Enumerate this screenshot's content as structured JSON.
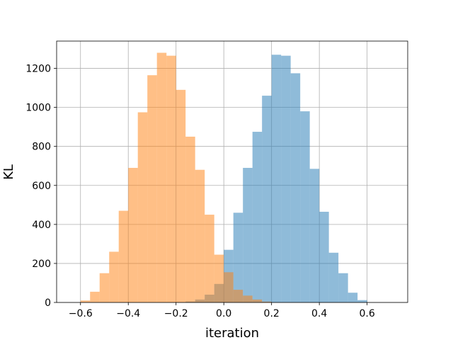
{
  "chart_data": {
    "type": "bar",
    "title": "",
    "xlabel": "iteration",
    "ylabel": "KL",
    "xlim": [
      -0.7,
      0.77
    ],
    "ylim": [
      0,
      1340
    ],
    "grid": true,
    "xticks": [
      -0.6,
      -0.4,
      -0.2,
      0.0,
      0.2,
      0.4,
      0.6
    ],
    "xtick_labels": [
      "−0.6",
      "−0.4",
      "−0.2",
      "0.0",
      "0.2",
      "0.4",
      "0.6"
    ],
    "yticks": [
      0,
      200,
      400,
      600,
      800,
      1000,
      1200
    ],
    "ytick_labels": [
      "0",
      "200",
      "400",
      "600",
      "800",
      "1000",
      "1200"
    ],
    "series": [
      {
        "color": "#1f77b4",
        "alpha": 0.5,
        "bins": [
          {
            "x0": -0.2,
            "x1": -0.16,
            "count": 2
          },
          {
            "x0": -0.16,
            "x1": -0.12,
            "count": 5
          },
          {
            "x0": -0.12,
            "x1": -0.08,
            "count": 15
          },
          {
            "x0": -0.08,
            "x1": -0.04,
            "count": 40
          },
          {
            "x0": -0.04,
            "x1": 0.0,
            "count": 95
          },
          {
            "x0": 0.0,
            "x1": 0.04,
            "count": 270
          },
          {
            "x0": 0.04,
            "x1": 0.08,
            "count": 460
          },
          {
            "x0": 0.08,
            "x1": 0.12,
            "count": 690
          },
          {
            "x0": 0.12,
            "x1": 0.16,
            "count": 875
          },
          {
            "x0": 0.16,
            "x1": 0.2,
            "count": 1060
          },
          {
            "x0": 0.2,
            "x1": 0.24,
            "count": 1270
          },
          {
            "x0": 0.24,
            "x1": 0.28,
            "count": 1265
          },
          {
            "x0": 0.28,
            "x1": 0.32,
            "count": 1175
          },
          {
            "x0": 0.32,
            "x1": 0.36,
            "count": 980
          },
          {
            "x0": 0.36,
            "x1": 0.4,
            "count": 685
          },
          {
            "x0": 0.4,
            "x1": 0.44,
            "count": 465
          },
          {
            "x0": 0.44,
            "x1": 0.48,
            "count": 255
          },
          {
            "x0": 0.48,
            "x1": 0.52,
            "count": 150
          },
          {
            "x0": 0.52,
            "x1": 0.56,
            "count": 50
          },
          {
            "x0": 0.56,
            "x1": 0.6,
            "count": 12
          }
        ]
      },
      {
        "color": "#ff7f0e",
        "alpha": 0.5,
        "bins": [
          {
            "x0": -0.6,
            "x1": -0.56,
            "count": 10
          },
          {
            "x0": -0.56,
            "x1": -0.52,
            "count": 55
          },
          {
            "x0": -0.52,
            "x1": -0.48,
            "count": 150
          },
          {
            "x0": -0.48,
            "x1": -0.44,
            "count": 260
          },
          {
            "x0": -0.44,
            "x1": -0.4,
            "count": 470
          },
          {
            "x0": -0.4,
            "x1": -0.36,
            "count": 690
          },
          {
            "x0": -0.36,
            "x1": -0.32,
            "count": 975
          },
          {
            "x0": -0.32,
            "x1": -0.28,
            "count": 1165
          },
          {
            "x0": -0.28,
            "x1": -0.24,
            "count": 1280
          },
          {
            "x0": -0.24,
            "x1": -0.2,
            "count": 1265
          },
          {
            "x0": -0.2,
            "x1": -0.16,
            "count": 1090
          },
          {
            "x0": -0.16,
            "x1": -0.12,
            "count": 850
          },
          {
            "x0": -0.12,
            "x1": -0.08,
            "count": 680
          },
          {
            "x0": -0.08,
            "x1": -0.04,
            "count": 450
          },
          {
            "x0": -0.04,
            "x1": 0.0,
            "count": 245
          },
          {
            "x0": 0.0,
            "x1": 0.04,
            "count": 155
          },
          {
            "x0": 0.04,
            "x1": 0.08,
            "count": 65
          },
          {
            "x0": 0.08,
            "x1": 0.12,
            "count": 35
          },
          {
            "x0": 0.12,
            "x1": 0.16,
            "count": 15
          },
          {
            "x0": 0.16,
            "x1": 0.2,
            "count": 4
          }
        ]
      }
    ]
  }
}
